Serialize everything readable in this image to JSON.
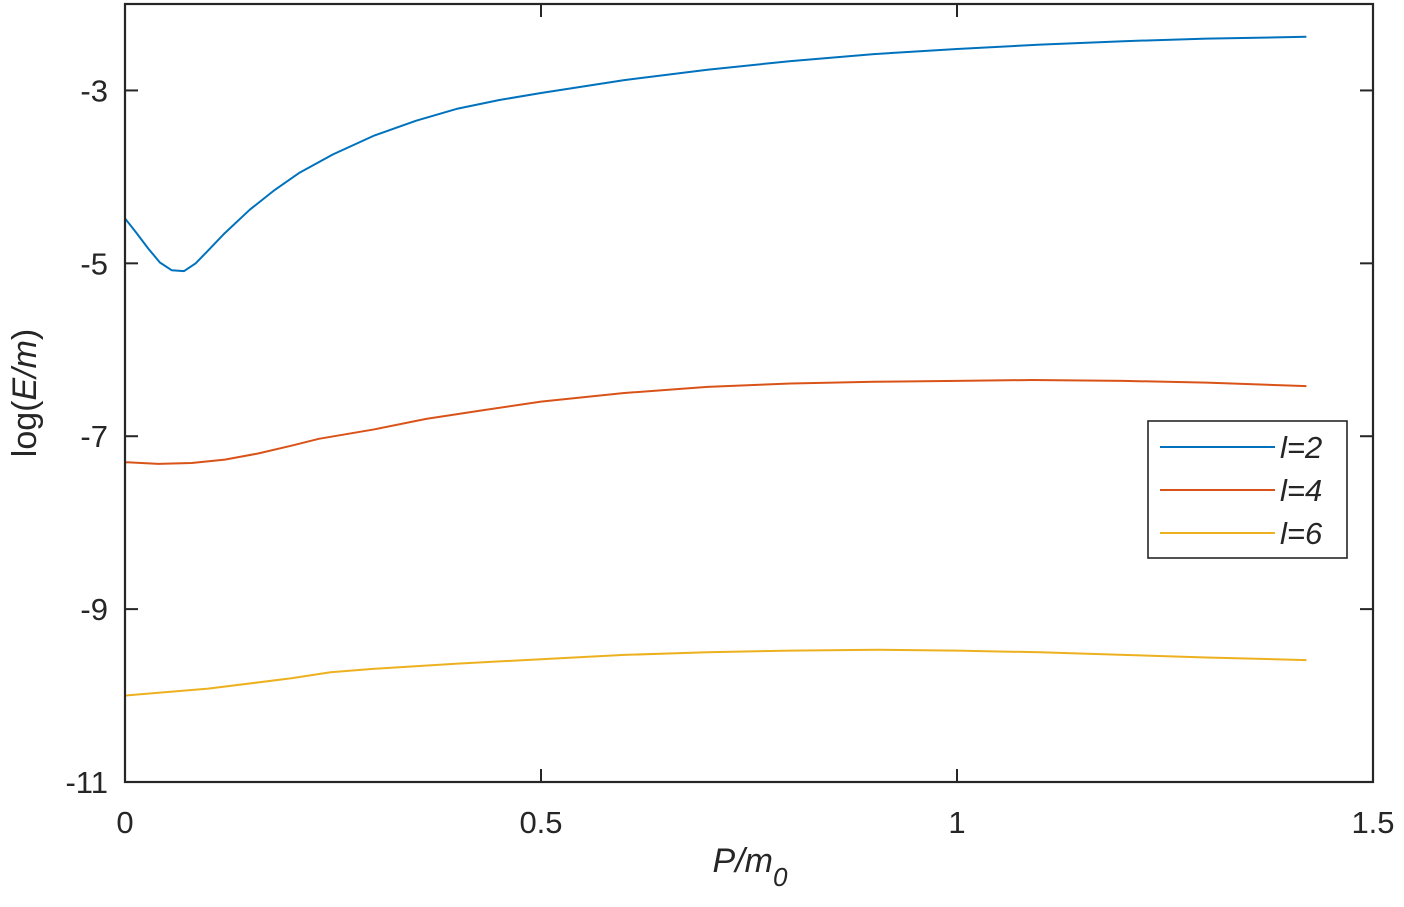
{
  "chart_data": {
    "type": "line",
    "title": "",
    "xlabel": "P/m0",
    "xlabel_main": "P/m",
    "xlabel_sub": "0",
    "ylabel": "log(E/m)",
    "ylabel_prefix": "log(",
    "ylabel_italic": "E/m",
    "ylabel_suffix": ")",
    "xlim": [
      0,
      1.5
    ],
    "ylim": [
      -11,
      -2
    ],
    "xticks": [
      0,
      0.5,
      1,
      1.5
    ],
    "xtick_labels": [
      "0",
      "0.5",
      "1",
      "1.5"
    ],
    "yticks": [
      -3,
      -5,
      -7,
      -9,
      -11
    ],
    "ytick_labels": [
      "-3",
      "-5",
      "-7",
      "-9",
      "-11"
    ],
    "grid": false,
    "box": true,
    "legend_position": "east",
    "series": [
      {
        "name": "l=2",
        "color": "#0072BD",
        "x": [
          0,
          0.014,
          0.028,
          0.042,
          0.056,
          0.071,
          0.085,
          0.1,
          0.12,
          0.15,
          0.18,
          0.21,
          0.25,
          0.3,
          0.35,
          0.4,
          0.45,
          0.5,
          0.6,
          0.7,
          0.8,
          0.9,
          1.0,
          1.1,
          1.2,
          1.3,
          1.42
        ],
        "values": [
          -4.48,
          -4.65,
          -4.83,
          -4.99,
          -5.08,
          -5.09,
          -5.0,
          -4.85,
          -4.65,
          -4.38,
          -4.15,
          -3.95,
          -3.74,
          -3.52,
          -3.35,
          -3.21,
          -3.11,
          -3.03,
          -2.88,
          -2.76,
          -2.66,
          -2.58,
          -2.52,
          -2.47,
          -2.43,
          -2.4,
          -2.38
        ]
      },
      {
        "name": "l=4",
        "color": "#D95319",
        "x": [
          0,
          0.04,
          0.08,
          0.12,
          0.16,
          0.2,
          0.233,
          0.3,
          0.362,
          0.43,
          0.5,
          0.6,
          0.7,
          0.8,
          0.9,
          1.0,
          1.09,
          1.2,
          1.3,
          1.42
        ],
        "values": [
          -7.3,
          -7.32,
          -7.31,
          -7.27,
          -7.2,
          -7.11,
          -7.03,
          -6.92,
          -6.8,
          -6.7,
          -6.6,
          -6.5,
          -6.43,
          -6.39,
          -6.37,
          -6.36,
          -6.35,
          -6.36,
          -6.38,
          -6.42
        ]
      },
      {
        "name": "l=6",
        "color": "#EDB120",
        "x": [
          0,
          0.1,
          0.2,
          0.247,
          0.3,
          0.4,
          0.5,
          0.6,
          0.7,
          0.8,
          0.905,
          1.0,
          1.1,
          1.2,
          1.3,
          1.42
        ],
        "values": [
          -10.0,
          -9.92,
          -9.8,
          -9.73,
          -9.69,
          -9.63,
          -9.58,
          -9.53,
          -9.5,
          -9.48,
          -9.47,
          -9.48,
          -9.5,
          -9.53,
          -9.56,
          -9.59
        ]
      }
    ]
  }
}
